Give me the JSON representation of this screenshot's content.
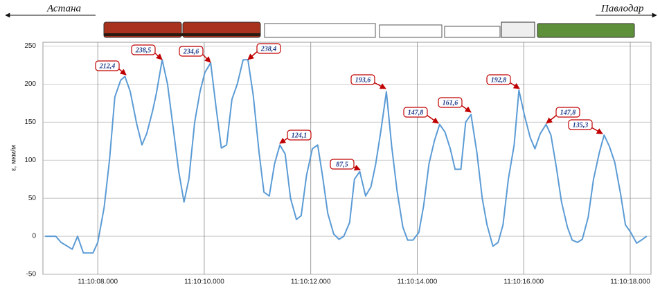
{
  "chart_data": {
    "type": "line",
    "route": {
      "from": "Астана",
      "to": "Павлодар"
    },
    "y_label": "ε, мкм/м",
    "color": "#5b9bd5",
    "grid": true,
    "x": [
      7.01,
      7.21,
      7.31,
      7.52,
      7.62,
      7.73,
      7.91,
      8.0,
      8.12,
      8.22,
      8.32,
      8.43,
      8.51,
      8.61,
      8.73,
      8.83,
      8.92,
      9.03,
      9.1,
      9.21,
      9.31,
      9.42,
      9.52,
      9.62,
      9.71,
      9.82,
      9.92,
      10.01,
      10.12,
      10.22,
      10.32,
      10.42,
      10.52,
      10.62,
      10.73,
      10.82,
      10.92,
      11.03,
      11.12,
      11.22,
      11.32,
      11.42,
      11.52,
      11.62,
      11.73,
      11.82,
      11.92,
      12.03,
      12.13,
      12.22,
      12.32,
      12.43,
      12.53,
      12.62,
      12.73,
      12.82,
      12.92,
      13.03,
      13.13,
      13.22,
      13.32,
      13.42,
      13.52,
      13.62,
      13.73,
      13.82,
      13.92,
      14.03,
      14.12,
      14.22,
      14.32,
      14.42,
      14.52,
      14.62,
      14.71,
      14.82,
      14.91,
      15.01,
      15.12,
      15.22,
      15.31,
      15.42,
      15.52,
      15.61,
      15.71,
      15.82,
      15.91,
      16.01,
      16.12,
      16.21,
      16.31,
      16.42,
      16.51,
      16.61,
      16.71,
      16.82,
      16.91,
      17.01,
      17.1,
      17.21,
      17.31,
      17.42,
      17.51,
      17.61,
      17.71,
      17.82,
      17.91,
      18.01,
      18.12,
      18.21,
      18.31
    ],
    "values": [
      0,
      0,
      -8,
      -17,
      0,
      -22,
      -22,
      -8,
      38,
      100,
      183,
      205,
      210,
      190,
      148,
      120,
      135,
      165,
      188,
      232,
      200,
      140,
      85,
      45,
      75,
      150,
      190,
      215,
      228,
      170,
      116,
      120,
      180,
      200,
      232,
      232,
      185,
      110,
      58,
      53,
      95,
      120,
      108,
      50,
      22,
      27,
      80,
      115,
      120,
      80,
      30,
      3,
      -4,
      0,
      18,
      75,
      85,
      53,
      65,
      95,
      140,
      190,
      118,
      60,
      12,
      -5,
      -5,
      5,
      40,
      95,
      125,
      147,
      137,
      115,
      88,
      88,
      150,
      160,
      110,
      50,
      15,
      -13,
      -8,
      15,
      75,
      120,
      192,
      160,
      130,
      115,
      135,
      147,
      133,
      92,
      45,
      12,
      -5,
      -8,
      -4,
      25,
      75,
      110,
      133,
      118,
      97,
      55,
      15,
      5,
      -9,
      -5,
      0
    ],
    "annotations": [
      "212,4",
      "238,5",
      "234,6",
      "238,4",
      "124,1",
      "87,5",
      "193,6",
      "147,8",
      "161,6",
      "192,8",
      "147,8",
      "135,3"
    ],
    "xlim": [
      6.97,
      18.39
    ],
    "ylim": [
      -50,
      255
    ],
    "yticks": [
      -50,
      0,
      50,
      100,
      150,
      200,
      250
    ],
    "xticks": [
      {
        "value": 8,
        "label": "11:10:08.000"
      },
      {
        "value": 10,
        "label": "11:10:10.000"
      },
      {
        "value": 12,
        "label": "11:10:12.000"
      },
      {
        "value": 14,
        "label": "11:10:14.000"
      },
      {
        "value": 16,
        "label": "11:10:16.000"
      },
      {
        "value": 18,
        "label": "11:10:18.000"
      }
    ]
  }
}
